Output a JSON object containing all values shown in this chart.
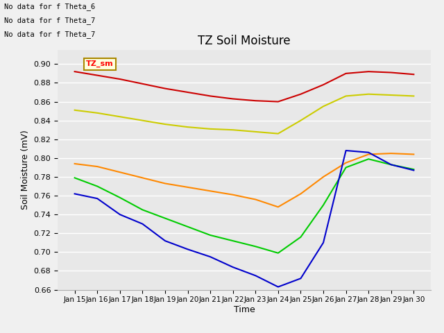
{
  "title": "TZ Soil Moisture",
  "xlabel": "Time",
  "ylabel": "Soil Moisture (mV)",
  "plot_bg_color": "#e8e8e8",
  "fig_bg_color": "#f0f0f0",
  "annotations": [
    "No data for f Theta_6",
    "No data for f Theta_7",
    "No data for f Theta_7"
  ],
  "tooltip_label": "TZ_sm",
  "x_labels": [
    "Jan 15",
    "Jan 16",
    "Jan 17",
    "Jan 18",
    "Jan 19",
    "Jan 20",
    "Jan 21",
    "Jan 22",
    "Jan 23",
    "Jan 24",
    "Jan 25",
    "Jan 26",
    "Jan 27",
    "Jan 28",
    "Jan 29",
    "Jan 30"
  ],
  "ylim": [
    0.66,
    0.915
  ],
  "yticks": [
    0.66,
    0.68,
    0.7,
    0.72,
    0.74,
    0.76,
    0.78,
    0.8,
    0.82,
    0.84,
    0.86,
    0.88,
    0.9
  ],
  "series": {
    "Theta_1": {
      "color": "#cc0000",
      "y": [
        0.892,
        0.888,
        0.884,
        0.879,
        0.874,
        0.87,
        0.866,
        0.863,
        0.861,
        0.86,
        0.868,
        0.878,
        0.89,
        0.892,
        0.891,
        0.889
      ]
    },
    "Theta_2": {
      "color": "#ff8800",
      "y": [
        0.794,
        0.791,
        0.785,
        0.779,
        0.773,
        0.769,
        0.765,
        0.761,
        0.756,
        0.748,
        0.762,
        0.78,
        0.795,
        0.804,
        0.805,
        0.804
      ]
    },
    "Theta_3": {
      "color": "#cccc00",
      "y": [
        0.851,
        0.848,
        0.844,
        0.84,
        0.836,
        0.833,
        0.831,
        0.83,
        0.828,
        0.826,
        0.84,
        0.855,
        0.866,
        0.868,
        0.867,
        0.866
      ]
    },
    "Theta_4": {
      "color": "#00cc00",
      "y": [
        0.779,
        0.77,
        0.758,
        0.745,
        0.736,
        0.727,
        0.718,
        0.712,
        0.706,
        0.699,
        0.716,
        0.75,
        0.79,
        0.799,
        0.793,
        0.788
      ]
    },
    "Theta_5": {
      "color": "#0000cc",
      "y": [
        0.762,
        0.757,
        0.74,
        0.73,
        0.712,
        0.703,
        0.695,
        0.684,
        0.675,
        0.663,
        0.672,
        0.71,
        0.808,
        0.806,
        0.793,
        0.787
      ]
    }
  }
}
